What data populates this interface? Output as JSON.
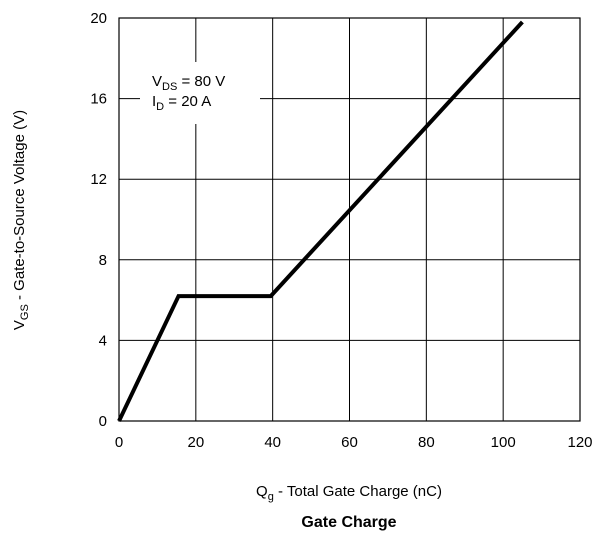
{
  "chart_data": {
    "type": "line",
    "title": "Gate Charge",
    "xlabel": {
      "main": "Q",
      "sub": "g",
      "rest": " - Total Gate Charge (nC)"
    },
    "ylabel": {
      "main": "V",
      "sub": "GS",
      "rest": " - Gate-to-Source Voltage (V)"
    },
    "xlim": [
      0,
      120
    ],
    "ylim": [
      0,
      20
    ],
    "xticks": [
      0,
      20,
      40,
      60,
      80,
      100,
      120
    ],
    "yticks": [
      0,
      4,
      8,
      12,
      16,
      20
    ],
    "grid": true,
    "series": [
      {
        "x": [
          0,
          15.5,
          39.5,
          105
        ],
        "y": [
          0,
          6.2,
          6.2,
          19.8
        ],
        "color": "#000000"
      }
    ],
    "annotations": [
      {
        "main": "V",
        "sub": "DS",
        "rest": " = 80 V"
      },
      {
        "main": "I",
        "sub": "D",
        "rest": " = 20 A"
      }
    ]
  }
}
